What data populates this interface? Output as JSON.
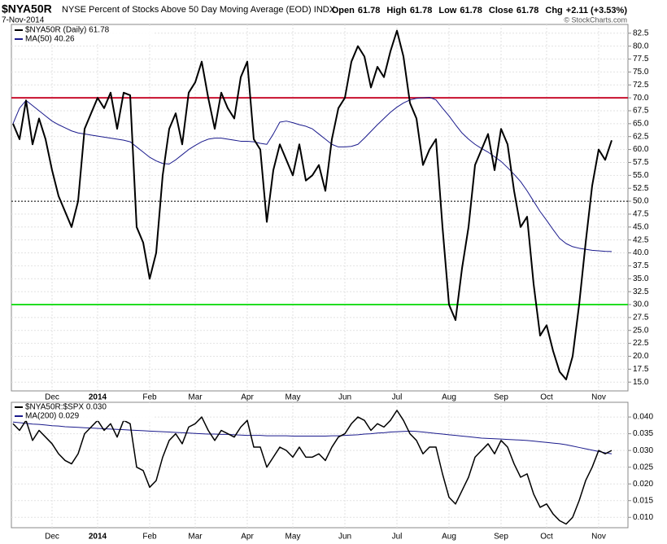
{
  "header": {
    "symbol": "$NYA50R",
    "description": "NYSE Percent of Stocks Above 50 Day Moving Average (EOD) INDX",
    "date": "7-Nov-2014",
    "copyright": "© StockCharts.com",
    "stats": [
      {
        "label": "Open",
        "value": "61.78"
      },
      {
        "label": "High",
        "value": "61.78"
      },
      {
        "label": "Low",
        "value": "61.78"
      },
      {
        "label": "Close",
        "value": "61.78"
      },
      {
        "label": "Chg",
        "value": "+2.11 (+3.53%)"
      }
    ]
  },
  "chart_data": [
    {
      "type": "line",
      "categories": [
        null,
        null,
        null,
        null,
        null,
        null,
        "Dec",
        null,
        null,
        null,
        null,
        null,
        null,
        "2014",
        null,
        null,
        null,
        null,
        null,
        null,
        null,
        "Feb",
        null,
        null,
        null,
        null,
        null,
        null,
        "Mar",
        null,
        null,
        null,
        null,
        null,
        null,
        null,
        "Apr",
        null,
        null,
        null,
        null,
        null,
        null,
        "May",
        null,
        null,
        null,
        null,
        null,
        null,
        null,
        "Jun",
        null,
        null,
        null,
        null,
        null,
        null,
        null,
        "Jul",
        null,
        null,
        null,
        null,
        null,
        null,
        null,
        "Aug",
        null,
        null,
        null,
        null,
        null,
        null,
        null,
        "Sep",
        null,
        null,
        null,
        null,
        null,
        null,
        "Oct",
        null,
        null,
        null,
        null,
        null,
        null,
        null,
        "Nov",
        null,
        null
      ],
      "series": [
        {
          "name": "$NYA50R (Daily) 61.78",
          "color": "#000000",
          "width": 2,
          "values": [
            65,
            62,
            69.5,
            61,
            66,
            62,
            56,
            51,
            48,
            45,
            50,
            64,
            67,
            70,
            68,
            71,
            64,
            71,
            70.5,
            45,
            42,
            35,
            40,
            55,
            64,
            67,
            61,
            71,
            73,
            77,
            70,
            64,
            71,
            68,
            66,
            74,
            77,
            62,
            60,
            46,
            56,
            61,
            58,
            55,
            61,
            54,
            55,
            57,
            52,
            62,
            68,
            70,
            77,
            80,
            78,
            72,
            76,
            74,
            79,
            83,
            78,
            69,
            66,
            57,
            60,
            62,
            45,
            30,
            27,
            37,
            45,
            57,
            60,
            63,
            56,
            64,
            61,
            52,
            45,
            47,
            34,
            24,
            26,
            21,
            17,
            15.5,
            20,
            30,
            42,
            53,
            60,
            58,
            61.78
          ]
        },
        {
          "name": "MA(50) 40.26",
          "color": "#1a1a8c",
          "width": 1,
          "values": [
            65,
            68,
            69.5,
            68.5,
            67.5,
            66.5,
            65.5,
            64.8,
            64.2,
            63.6,
            63.2,
            63,
            62.8,
            62.6,
            62.4,
            62.2,
            62,
            61.8,
            61.5,
            60.5,
            59.5,
            58.5,
            57.8,
            57.3,
            57.2,
            58,
            59,
            60,
            60.8,
            61.5,
            62,
            62.2,
            62.2,
            62,
            61.8,
            61.6,
            61.6,
            61.5,
            61.2,
            61,
            63,
            65.3,
            65.5,
            65.2,
            64.8,
            64.5,
            64,
            63,
            62,
            61,
            60.5,
            60.5,
            60.6,
            61,
            62.2,
            63.5,
            64.8,
            66,
            67.2,
            68.2,
            69,
            69.6,
            69.9,
            70,
            70.1,
            69.6,
            68,
            66.5,
            64.8,
            63.2,
            62,
            61,
            60.2,
            59.5,
            58.6,
            57.7,
            56.5,
            55.2,
            53.8,
            52,
            50,
            48,
            46.3,
            44.5,
            42.8,
            41.8,
            41.2,
            40.9,
            40.7,
            40.5,
            40.4,
            40.3,
            40.26
          ]
        }
      ],
      "ylim": [
        13.3,
        84.2
      ],
      "yticks": [
        {
          "value": 15,
          "label": "15.0"
        },
        17.5,
        {
          "value": 20,
          "label": "20.0"
        },
        22.5,
        {
          "value": 25,
          "label": "25.0"
        },
        27.5,
        {
          "value": 30,
          "label": "30.0"
        },
        32.5,
        {
          "value": 35,
          "label": "35.0"
        },
        37.5,
        {
          "value": 40,
          "label": "40.0"
        },
        42.5,
        {
          "value": 45,
          "label": "45.0"
        },
        47.5,
        {
          "value": 50,
          "label": "50.0"
        },
        52.5,
        {
          "value": 55,
          "label": "55.0"
        },
        57.5,
        {
          "value": 60,
          "label": "60.0"
        },
        62.5,
        {
          "value": 65,
          "label": "65.0"
        },
        67.5,
        {
          "value": 70,
          "label": "70.0"
        },
        72.5,
        {
          "value": 75,
          "label": "75.0"
        },
        77.5,
        {
          "value": 80,
          "label": "80.0"
        },
        82.5
      ],
      "grid": true,
      "hlines": [
        {
          "value": 70,
          "color": "#c8102e",
          "style": "solid"
        },
        {
          "value": 30,
          "color": "#22dd22",
          "style": "solid"
        },
        {
          "value": 50,
          "color": "#000000",
          "style": "dotted"
        }
      ]
    },
    {
      "type": "line",
      "categories": [
        null,
        null,
        null,
        null,
        null,
        null,
        "Dec",
        null,
        null,
        null,
        null,
        null,
        null,
        "2014",
        null,
        null,
        null,
        null,
        null,
        null,
        null,
        "Feb",
        null,
        null,
        null,
        null,
        null,
        null,
        "Mar",
        null,
        null,
        null,
        null,
        null,
        null,
        null,
        "Apr",
        null,
        null,
        null,
        null,
        null,
        null,
        "May",
        null,
        null,
        null,
        null,
        null,
        null,
        null,
        "Jun",
        null,
        null,
        null,
        null,
        null,
        null,
        null,
        "Jul",
        null,
        null,
        null,
        null,
        null,
        null,
        null,
        "Aug",
        null,
        null,
        null,
        null,
        null,
        null,
        null,
        "Sep",
        null,
        null,
        null,
        null,
        null,
        null,
        "Oct",
        null,
        null,
        null,
        null,
        null,
        null,
        null,
        "Nov",
        null,
        null
      ],
      "series": [
        {
          "name": "$NYA50R:$SPX 0.030",
          "color": "#000000",
          "width": 1.5,
          "values": [
            0.038,
            0.036,
            0.039,
            0.033,
            0.036,
            0.034,
            0.032,
            0.029,
            0.027,
            0.026,
            0.029,
            0.035,
            0.037,
            0.039,
            0.036,
            0.038,
            0.034,
            0.039,
            0.038,
            0.025,
            0.024,
            0.019,
            0.021,
            0.028,
            0.033,
            0.035,
            0.032,
            0.037,
            0.038,
            0.04,
            0.036,
            0.033,
            0.036,
            0.035,
            0.034,
            0.037,
            0.039,
            0.031,
            0.031,
            0.025,
            0.028,
            0.031,
            0.03,
            0.028,
            0.031,
            0.028,
            0.028,
            0.029,
            0.027,
            0.031,
            0.034,
            0.035,
            0.038,
            0.04,
            0.039,
            0.036,
            0.038,
            0.037,
            0.039,
            0.042,
            0.039,
            0.035,
            0.033,
            0.029,
            0.031,
            0.031,
            0.023,
            0.016,
            0.014,
            0.018,
            0.022,
            0.028,
            0.03,
            0.032,
            0.029,
            0.033,
            0.031,
            0.026,
            0.022,
            0.023,
            0.017,
            0.013,
            0.014,
            0.011,
            0.009,
            0.008,
            0.01,
            0.015,
            0.021,
            0.025,
            0.03,
            0.029,
            0.03
          ]
        },
        {
          "name": "MA(200) 0.029",
          "color": "#1a1a8c",
          "width": 1,
          "values": [
            0.0385,
            0.0383,
            0.0381,
            0.0379,
            0.0378,
            0.0376,
            0.0374,
            0.0373,
            0.0371,
            0.037,
            0.0369,
            0.0368,
            0.0367,
            0.0366,
            0.0365,
            0.0364,
            0.0363,
            0.0362,
            0.0361,
            0.036,
            0.0359,
            0.0358,
            0.0357,
            0.0356,
            0.0355,
            0.0354,
            0.0353,
            0.0352,
            0.0351,
            0.035,
            0.0349,
            0.0349,
            0.0348,
            0.0348,
            0.0347,
            0.0346,
            0.0345,
            0.0345,
            0.0345,
            0.0344,
            0.0344,
            0.0344,
            0.0344,
            0.0343,
            0.0343,
            0.0343,
            0.0343,
            0.0343,
            0.0343,
            0.0344,
            0.0344,
            0.0345,
            0.0346,
            0.0347,
            0.0349,
            0.035,
            0.0352,
            0.0353,
            0.0355,
            0.0356,
            0.0357,
            0.0358,
            0.0357,
            0.0355,
            0.0353,
            0.0351,
            0.0349,
            0.0347,
            0.0345,
            0.0343,
            0.0341,
            0.0339,
            0.0337,
            0.0336,
            0.0335,
            0.0334,
            0.0333,
            0.0332,
            0.0331,
            0.033,
            0.0328,
            0.0326,
            0.0324,
            0.0322,
            0.032,
            0.0317,
            0.0313,
            0.0309,
            0.0305,
            0.0301,
            0.0297,
            0.0293,
            0.029
          ]
        }
      ],
      "ylim": [
        0.0069,
        0.0444
      ],
      "yticks": [
        {
          "value": 0.01,
          "label": "0.010"
        },
        {
          "value": 0.015,
          "label": "0.015"
        },
        {
          "value": 0.02,
          "label": "0.020"
        },
        {
          "value": 0.025,
          "label": "0.025"
        },
        {
          "value": 0.03,
          "label": "0.030"
        },
        {
          "value": 0.035,
          "label": "0.035"
        },
        {
          "value": 0.04,
          "label": "0.040"
        }
      ],
      "grid": true,
      "hlines": []
    }
  ]
}
